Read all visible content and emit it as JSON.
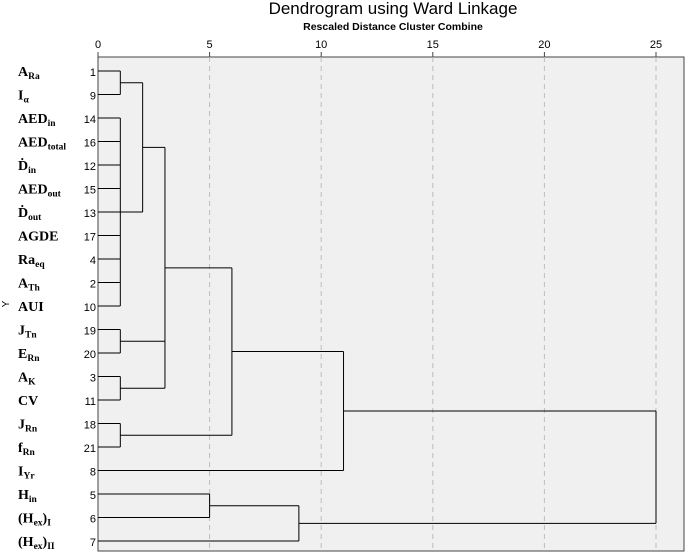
{
  "chart_data": {
    "type": "dendrogram",
    "title": "Dendrogram using Ward Linkage",
    "subtitle": "Rescaled Distance Cluster Combine",
    "y_axis_label": "Y",
    "x_ticks": [
      0,
      5,
      10,
      15,
      20,
      25
    ],
    "xlim": [
      0,
      25
    ],
    "grid": true,
    "leaves": [
      {
        "label": "A",
        "sub": "Ra",
        "case": "1"
      },
      {
        "label": "I",
        "sub": "α",
        "case": "9"
      },
      {
        "label": "AED",
        "sub": "in",
        "case": "14"
      },
      {
        "label": "AED",
        "sub": "total",
        "case": "16"
      },
      {
        "label": "Ḋ",
        "sub": "in",
        "case": "12"
      },
      {
        "label": "AED",
        "sub": "out",
        "case": "15"
      },
      {
        "label": "Ḋ",
        "sub": "out",
        "case": "13"
      },
      {
        "label": "AGDE",
        "sub": "",
        "case": "17"
      },
      {
        "label": "Ra",
        "sub": "eq",
        "case": "4"
      },
      {
        "label": "A",
        "sub": "Th",
        "case": "2"
      },
      {
        "label": "AUI",
        "sub": "",
        "case": "10"
      },
      {
        "label": "J",
        "sub": "Tn",
        "case": "19"
      },
      {
        "label": "E",
        "sub": "Rn",
        "case": "20"
      },
      {
        "label": "A",
        "sub": "K",
        "case": "3"
      },
      {
        "label": "CV",
        "sub": "",
        "case": "11"
      },
      {
        "label": "J",
        "sub": "Rn",
        "case": "18"
      },
      {
        "label": "f",
        "sub": "Rn",
        "case": "21"
      },
      {
        "label": "I",
        "sub": "Yr",
        "case": "8"
      },
      {
        "label": "H",
        "sub": "in",
        "case": "5"
      },
      {
        "label": "(H",
        "sub": "ex",
        "tail": ")",
        "sub2": "I",
        "case": "6"
      },
      {
        "label": "(H",
        "sub": "ex",
        "tail": ")",
        "sub2": "II",
        "case": "7"
      }
    ],
    "merges": [
      {
        "id": "A",
        "children": [
          {
            "leaf": 2
          },
          {
            "leaf": 3
          },
          {
            "leaf": 4
          },
          {
            "leaf": 5
          },
          {
            "leaf": 6
          },
          {
            "leaf": 7
          },
          {
            "leaf": 8
          },
          {
            "leaf": 9
          },
          {
            "leaf": 10
          }
        ],
        "height": 1.0
      },
      {
        "id": "B",
        "children": [
          {
            "leaf": 0
          },
          {
            "leaf": 1
          }
        ],
        "height": 1.0
      },
      {
        "id": "C",
        "children": [
          {
            "node": "B"
          },
          {
            "node": "A"
          }
        ],
        "height": 2.0
      },
      {
        "id": "D",
        "children": [
          {
            "leaf": 11
          },
          {
            "leaf": 12
          }
        ],
        "height": 1.0
      },
      {
        "id": "E",
        "children": [
          {
            "leaf": 13
          },
          {
            "leaf": 14
          }
        ],
        "height": 1.0
      },
      {
        "id": "F",
        "children": [
          {
            "node": "C"
          },
          {
            "node": "D"
          },
          {
            "node": "E"
          }
        ],
        "height": 3.0
      },
      {
        "id": "G",
        "children": [
          {
            "leaf": 15
          },
          {
            "leaf": 16
          }
        ],
        "height": 1.0
      },
      {
        "id": "H",
        "children": [
          {
            "node": "F"
          },
          {
            "node": "G"
          }
        ],
        "height": 6.0
      },
      {
        "id": "I",
        "children": [
          {
            "node": "H"
          },
          {
            "leaf": 17
          }
        ],
        "height": 11.0
      },
      {
        "id": "J",
        "children": [
          {
            "leaf": 18
          },
          {
            "leaf": 19
          }
        ],
        "height": 5.0
      },
      {
        "id": "K",
        "children": [
          {
            "node": "J"
          },
          {
            "leaf": 20
          }
        ],
        "height": 9.0
      },
      {
        "id": "L",
        "children": [
          {
            "node": "I"
          },
          {
            "node": "K"
          }
        ],
        "height": 25.0
      }
    ]
  }
}
